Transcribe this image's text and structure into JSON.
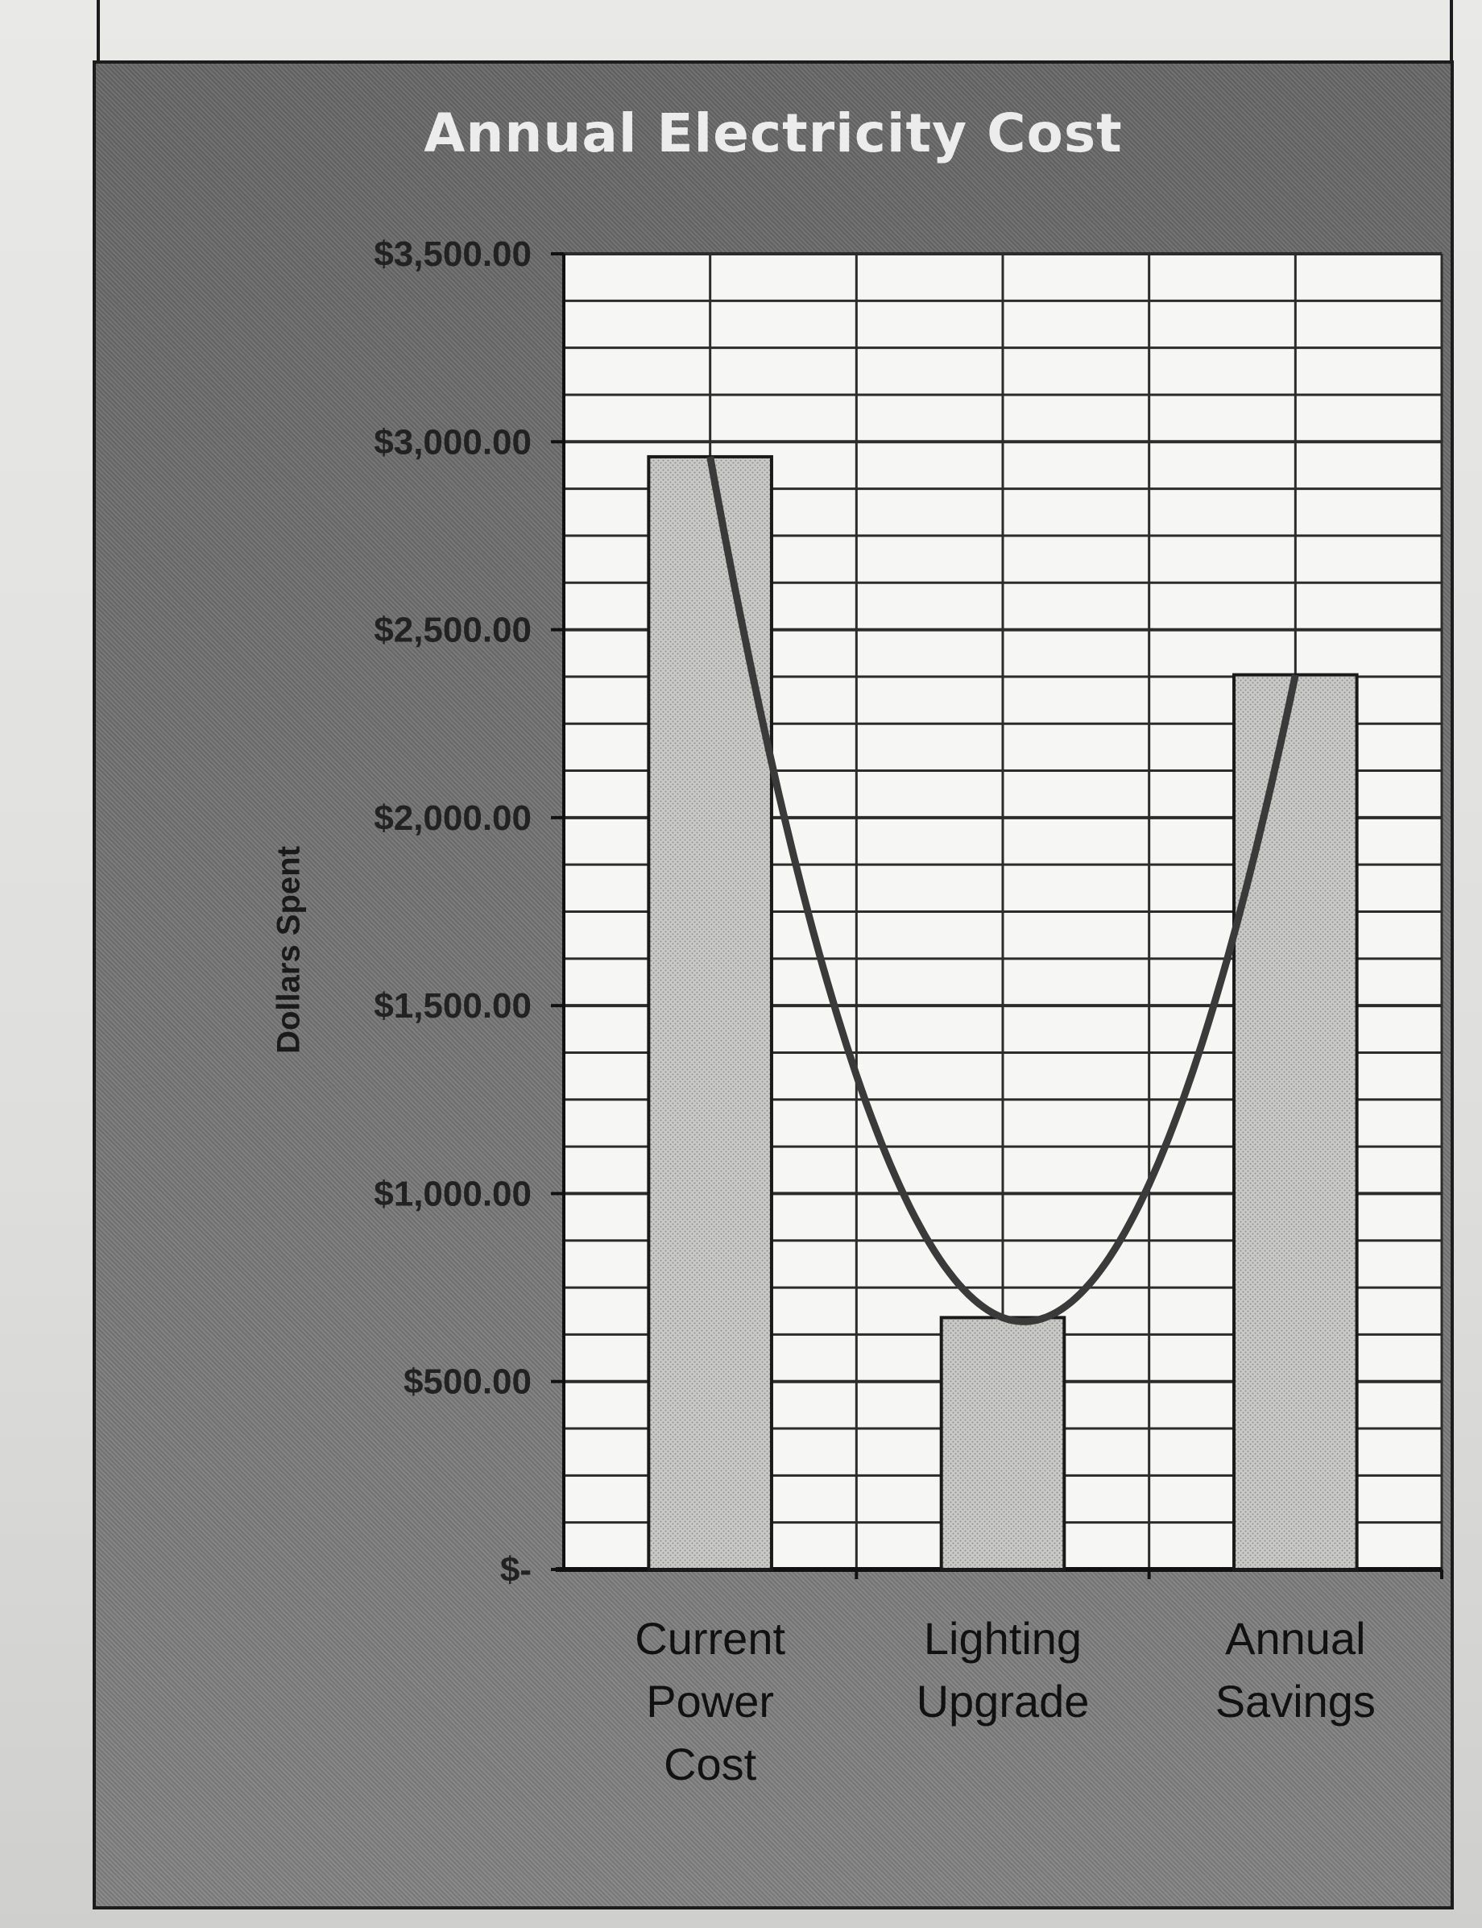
{
  "chart_data": {
    "type": "bar",
    "title": "Annual Electricity Cost",
    "ylabel": "Dollars Spent",
    "xlabel": "",
    "ylim": [
      0,
      3500
    ],
    "yticks": [
      0,
      500,
      1000,
      1500,
      2000,
      2500,
      3000,
      3500
    ],
    "ytick_labels": [
      "$-",
      "$500.00",
      "$1,000.00",
      "$1,500.00",
      "$2,000.00",
      "$2,500.00",
      "$3,000.00",
      "$3,500.00"
    ],
    "categories": [
      [
        "Current",
        "Power",
        "Cost"
      ],
      [
        "Lighting",
        "Upgrade"
      ],
      [
        "Annual",
        "Savings"
      ]
    ],
    "values": [
      2960,
      670,
      2380
    ],
    "trendline": "polynomial",
    "grid": true,
    "colors": {
      "bar": "#c9c9c7",
      "plot_bg": "#f6f6f4",
      "frame_bg": "#6e6e6e",
      "trend": "#3a3a3a"
    }
  }
}
